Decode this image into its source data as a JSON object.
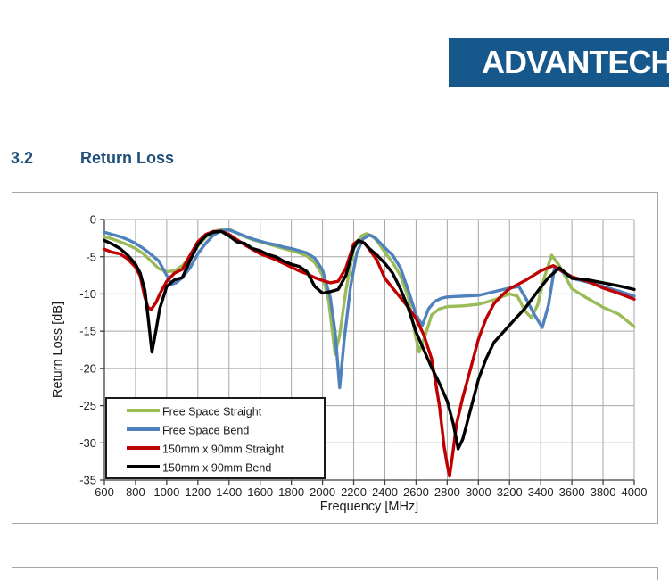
{
  "logo": {
    "text": "ADVANTECH",
    "bg_color": "#17588C",
    "text_color": "#ffffff"
  },
  "heading": {
    "section_number": "3.2",
    "section_title": "Return Loss",
    "color": "#1F4E79"
  },
  "chart_data": {
    "type": "line",
    "title": "",
    "xlabel": "Frequency [MHz]",
    "ylabel": "Return Loss [dB]",
    "xlim": [
      600,
      4000
    ],
    "ylim": [
      -35,
      0
    ],
    "x_ticks": [
      600,
      800,
      1000,
      1200,
      1400,
      1600,
      1800,
      2000,
      2200,
      2400,
      2600,
      2800,
      3000,
      3200,
      3400,
      3600,
      3800,
      4000
    ],
    "y_ticks": [
      0,
      -5,
      -10,
      -15,
      -20,
      -25,
      -30,
      -35
    ],
    "grid": true,
    "grid_color": "#a6a6a6",
    "axis_color": "#404040",
    "legend_position": "inside bottom-left",
    "series": [
      {
        "name": "Free Space Straight",
        "color": "#9BBB59",
        "points": [
          [
            600,
            -2.3
          ],
          [
            650,
            -2.6
          ],
          [
            700,
            -3.0
          ],
          [
            750,
            -3.4
          ],
          [
            800,
            -3.9
          ],
          [
            850,
            -4.6
          ],
          [
            900,
            -5.6
          ],
          [
            950,
            -6.6
          ],
          [
            1000,
            -7.0
          ],
          [
            1050,
            -6.9
          ],
          [
            1100,
            -6.2
          ],
          [
            1150,
            -5.0
          ],
          [
            1200,
            -3.6
          ],
          [
            1250,
            -2.4
          ],
          [
            1300,
            -1.7
          ],
          [
            1350,
            -1.3
          ],
          [
            1400,
            -1.3
          ],
          [
            1450,
            -1.8
          ],
          [
            1500,
            -2.3
          ],
          [
            1550,
            -2.7
          ],
          [
            1600,
            -3.0
          ],
          [
            1650,
            -3.3
          ],
          [
            1700,
            -3.6
          ],
          [
            1750,
            -3.9
          ],
          [
            1800,
            -4.2
          ],
          [
            1850,
            -4.5
          ],
          [
            1900,
            -4.9
          ],
          [
            1950,
            -5.8
          ],
          [
            2000,
            -7.5
          ],
          [
            2040,
            -11.0
          ],
          [
            2080,
            -18.1
          ],
          [
            2110,
            -15.5
          ],
          [
            2150,
            -9.5
          ],
          [
            2200,
            -4.0
          ],
          [
            2250,
            -2.2
          ],
          [
            2280,
            -1.9
          ],
          [
            2320,
            -2.2
          ],
          [
            2350,
            -2.9
          ],
          [
            2400,
            -4.4
          ],
          [
            2450,
            -5.8
          ],
          [
            2500,
            -7.5
          ],
          [
            2550,
            -10.5
          ],
          [
            2600,
            -16.0
          ],
          [
            2620,
            -17.8
          ],
          [
            2660,
            -15.5
          ],
          [
            2700,
            -12.8
          ],
          [
            2750,
            -12.0
          ],
          [
            2800,
            -11.7
          ],
          [
            2900,
            -11.6
          ],
          [
            3000,
            -11.4
          ],
          [
            3100,
            -10.8
          ],
          [
            3200,
            -10.0
          ],
          [
            3250,
            -10.3
          ],
          [
            3300,
            -12.3
          ],
          [
            3340,
            -13.2
          ],
          [
            3380,
            -11.5
          ],
          [
            3420,
            -8.0
          ],
          [
            3470,
            -4.8
          ],
          [
            3520,
            -6.2
          ],
          [
            3600,
            -9.3
          ],
          [
            3700,
            -10.6
          ],
          [
            3800,
            -11.8
          ],
          [
            3900,
            -12.7
          ],
          [
            4000,
            -14.4
          ]
        ]
      },
      {
        "name": "Free Space Bend",
        "color": "#4F81BD",
        "points": [
          [
            600,
            -1.7
          ],
          [
            650,
            -2.0
          ],
          [
            700,
            -2.3
          ],
          [
            750,
            -2.7
          ],
          [
            800,
            -3.2
          ],
          [
            850,
            -3.9
          ],
          [
            900,
            -4.7
          ],
          [
            950,
            -5.6
          ],
          [
            1000,
            -7.5
          ],
          [
            1030,
            -8.7
          ],
          [
            1060,
            -8.5
          ],
          [
            1100,
            -7.8
          ],
          [
            1150,
            -6.5
          ],
          [
            1200,
            -4.6
          ],
          [
            1250,
            -3.2
          ],
          [
            1300,
            -2.1
          ],
          [
            1350,
            -1.5
          ],
          [
            1400,
            -1.4
          ],
          [
            1450,
            -1.8
          ],
          [
            1500,
            -2.2
          ],
          [
            1550,
            -2.6
          ],
          [
            1600,
            -2.9
          ],
          [
            1650,
            -3.2
          ],
          [
            1700,
            -3.4
          ],
          [
            1750,
            -3.7
          ],
          [
            1800,
            -3.9
          ],
          [
            1850,
            -4.2
          ],
          [
            1900,
            -4.5
          ],
          [
            1950,
            -5.2
          ],
          [
            2000,
            -6.8
          ],
          [
            2050,
            -10.5
          ],
          [
            2080,
            -15.0
          ],
          [
            2110,
            -22.6
          ],
          [
            2140,
            -16.0
          ],
          [
            2180,
            -9.0
          ],
          [
            2220,
            -4.5
          ],
          [
            2260,
            -2.6
          ],
          [
            2300,
            -2.1
          ],
          [
            2340,
            -2.5
          ],
          [
            2400,
            -3.8
          ],
          [
            2450,
            -4.8
          ],
          [
            2500,
            -6.5
          ],
          [
            2550,
            -9.5
          ],
          [
            2600,
            -12.8
          ],
          [
            2640,
            -14.2
          ],
          [
            2680,
            -12.0
          ],
          [
            2720,
            -11.0
          ],
          [
            2760,
            -10.6
          ],
          [
            2800,
            -10.4
          ],
          [
            2900,
            -10.3
          ],
          [
            3000,
            -10.2
          ],
          [
            3100,
            -9.7
          ],
          [
            3200,
            -9.2
          ],
          [
            3260,
            -9.0
          ],
          [
            3310,
            -10.8
          ],
          [
            3360,
            -12.8
          ],
          [
            3410,
            -14.5
          ],
          [
            3450,
            -11.5
          ],
          [
            3490,
            -6.3
          ],
          [
            3550,
            -7.2
          ],
          [
            3600,
            -7.9
          ],
          [
            3700,
            -8.4
          ],
          [
            3800,
            -9.0
          ],
          [
            3900,
            -9.6
          ],
          [
            4000,
            -10.3
          ]
        ]
      },
      {
        "name": "150mm x 90mm Straight",
        "color": "#C00000",
        "points": [
          [
            600,
            -4.0
          ],
          [
            650,
            -4.4
          ],
          [
            700,
            -4.6
          ],
          [
            750,
            -5.3
          ],
          [
            800,
            -6.4
          ],
          [
            830,
            -7.6
          ],
          [
            860,
            -10.5
          ],
          [
            880,
            -11.8
          ],
          [
            900,
            -12.1
          ],
          [
            930,
            -11.2
          ],
          [
            960,
            -9.8
          ],
          [
            1000,
            -8.3
          ],
          [
            1050,
            -7.2
          ],
          [
            1100,
            -6.7
          ],
          [
            1150,
            -4.8
          ],
          [
            1200,
            -3.0
          ],
          [
            1250,
            -2.0
          ],
          [
            1300,
            -1.6
          ],
          [
            1350,
            -1.6
          ],
          [
            1400,
            -2.0
          ],
          [
            1450,
            -2.7
          ],
          [
            1500,
            -3.4
          ],
          [
            1550,
            -4.0
          ],
          [
            1600,
            -4.6
          ],
          [
            1650,
            -5.0
          ],
          [
            1700,
            -5.4
          ],
          [
            1750,
            -5.9
          ],
          [
            1800,
            -6.4
          ],
          [
            1850,
            -6.9
          ],
          [
            1900,
            -7.3
          ],
          [
            1950,
            -7.8
          ],
          [
            2000,
            -8.2
          ],
          [
            2050,
            -8.5
          ],
          [
            2100,
            -8.3
          ],
          [
            2150,
            -6.5
          ],
          [
            2200,
            -3.3
          ],
          [
            2230,
            -2.8
          ],
          [
            2270,
            -3.2
          ],
          [
            2300,
            -4.0
          ],
          [
            2350,
            -5.5
          ],
          [
            2400,
            -7.9
          ],
          [
            2450,
            -9.2
          ],
          [
            2500,
            -10.5
          ],
          [
            2550,
            -11.8
          ],
          [
            2600,
            -13.3
          ],
          [
            2650,
            -15.5
          ],
          [
            2700,
            -18.7
          ],
          [
            2750,
            -25.0
          ],
          [
            2780,
            -30.5
          ],
          [
            2800,
            -33.0
          ],
          [
            2815,
            -34.5
          ],
          [
            2835,
            -31.5
          ],
          [
            2860,
            -27.5
          ],
          [
            2900,
            -23.9
          ],
          [
            2950,
            -20.0
          ],
          [
            3000,
            -16.1
          ],
          [
            3050,
            -13.3
          ],
          [
            3100,
            -11.3
          ],
          [
            3150,
            -10.2
          ],
          [
            3200,
            -9.3
          ],
          [
            3300,
            -8.2
          ],
          [
            3400,
            -6.9
          ],
          [
            3480,
            -6.2
          ],
          [
            3550,
            -7.1
          ],
          [
            3600,
            -7.7
          ],
          [
            3700,
            -8.3
          ],
          [
            3800,
            -9.2
          ],
          [
            3900,
            -9.9
          ],
          [
            4000,
            -10.7
          ]
        ]
      },
      {
        "name": "150mm x 90mm Bend",
        "color": "#000000",
        "points": [
          [
            600,
            -2.8
          ],
          [
            650,
            -3.3
          ],
          [
            700,
            -3.9
          ],
          [
            750,
            -4.8
          ],
          [
            800,
            -6.0
          ],
          [
            830,
            -7.2
          ],
          [
            860,
            -9.5
          ],
          [
            880,
            -13.0
          ],
          [
            905,
            -17.8
          ],
          [
            930,
            -15.0
          ],
          [
            955,
            -12.0
          ],
          [
            1000,
            -9.0
          ],
          [
            1050,
            -8.1
          ],
          [
            1100,
            -7.8
          ],
          [
            1150,
            -5.5
          ],
          [
            1200,
            -3.4
          ],
          [
            1250,
            -2.2
          ],
          [
            1300,
            -1.7
          ],
          [
            1350,
            -1.6
          ],
          [
            1400,
            -2.2
          ],
          [
            1450,
            -3.0
          ],
          [
            1500,
            -3.2
          ],
          [
            1550,
            -3.9
          ],
          [
            1600,
            -4.2
          ],
          [
            1650,
            -4.7
          ],
          [
            1700,
            -5.0
          ],
          [
            1750,
            -5.6
          ],
          [
            1800,
            -6.0
          ],
          [
            1850,
            -6.3
          ],
          [
            1900,
            -7.0
          ],
          [
            1950,
            -9.0
          ],
          [
            2000,
            -9.9
          ],
          [
            2050,
            -9.7
          ],
          [
            2100,
            -9.4
          ],
          [
            2150,
            -7.5
          ],
          [
            2200,
            -3.8
          ],
          [
            2230,
            -2.8
          ],
          [
            2270,
            -3.2
          ],
          [
            2300,
            -3.9
          ],
          [
            2350,
            -4.8
          ],
          [
            2400,
            -5.9
          ],
          [
            2450,
            -7.2
          ],
          [
            2500,
            -9.3
          ],
          [
            2550,
            -11.9
          ],
          [
            2600,
            -15.1
          ],
          [
            2650,
            -17.5
          ],
          [
            2700,
            -19.9
          ],
          [
            2750,
            -22.0
          ],
          [
            2800,
            -24.4
          ],
          [
            2840,
            -27.5
          ],
          [
            2870,
            -30.8
          ],
          [
            2900,
            -29.5
          ],
          [
            2950,
            -25.5
          ],
          [
            3000,
            -21.5
          ],
          [
            3050,
            -18.7
          ],
          [
            3100,
            -16.5
          ],
          [
            3200,
            -14.2
          ],
          [
            3300,
            -11.9
          ],
          [
            3400,
            -9.1
          ],
          [
            3450,
            -7.8
          ],
          [
            3520,
            -6.5
          ],
          [
            3600,
            -7.9
          ],
          [
            3700,
            -8.1
          ],
          [
            3800,
            -8.5
          ],
          [
            3900,
            -8.9
          ],
          [
            4000,
            -9.4
          ]
        ]
      }
    ]
  }
}
